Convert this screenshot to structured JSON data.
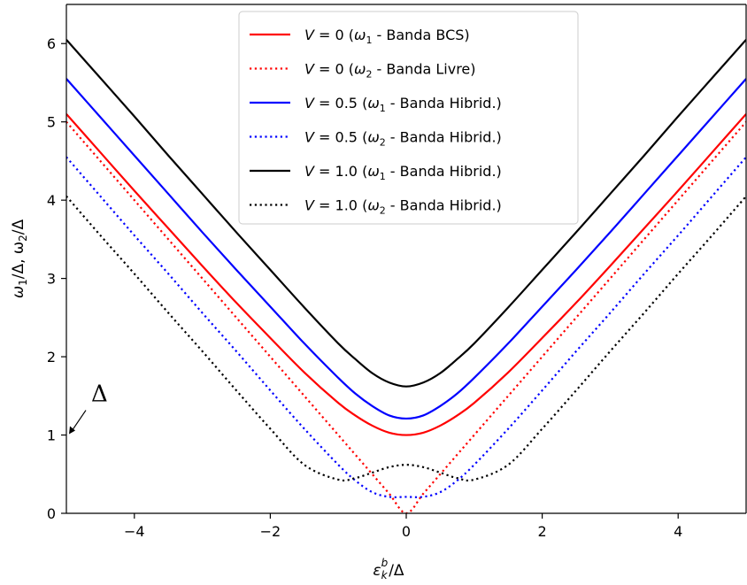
{
  "chart_data": {
    "type": "line",
    "xlabel_html": [
      "ε",
      "k",
      "b",
      "/Δ"
    ],
    "ylabel": "ω1/Δ,ω2/Δ",
    "ylabel_parts": [
      "ω",
      "1",
      "/Δ, ω",
      "2",
      "/Δ"
    ],
    "xlim": [
      -5,
      5
    ],
    "ylim": [
      0,
      6.5
    ],
    "xticks": [
      -4,
      -2,
      0,
      2,
      4
    ],
    "xtick_labels": [
      "−4",
      "−2",
      "0",
      "2",
      "4"
    ],
    "yticks": [
      0,
      1,
      2,
      3,
      4,
      5,
      6
    ],
    "ytick_labels": [
      "0",
      "1",
      "2",
      "3",
      "4",
      "5",
      "6"
    ],
    "legend_position": "top-center",
    "x": [
      -5,
      -4.5,
      -4,
      -3.5,
      -3,
      -2.5,
      -2,
      -1.5,
      -1,
      -0.75,
      -0.5,
      -0.25,
      0,
      0.25,
      0.5,
      0.75,
      1,
      1.5,
      2,
      2.5,
      3,
      3.5,
      4,
      4.5,
      5
    ],
    "series": [
      {
        "name": "V = 0 (ω1 - Banda BCS)",
        "label_parts": [
          "V",
          " = 0 (",
          "ω",
          "1",
          " - Banda BCS)"
        ],
        "color": "#ff0000",
        "style": "solid",
        "values": [
          5.1,
          4.61,
          4.12,
          3.64,
          3.16,
          2.69,
          2.24,
          1.8,
          1.41,
          1.25,
          1.12,
          1.03,
          1.0,
          1.03,
          1.12,
          1.25,
          1.41,
          1.8,
          2.24,
          2.69,
          3.16,
          3.64,
          4.12,
          4.61,
          5.1
        ]
      },
      {
        "name": "V = 0 (ω2 - Banda Livre)",
        "label_parts": [
          "V",
          " = 0 (",
          "ω",
          "2",
          " - Banda Livre)"
        ],
        "color": "#ff0000",
        "style": "dotted",
        "values": [
          5.0,
          4.5,
          4.0,
          3.5,
          3.0,
          2.5,
          2.0,
          1.5,
          1.0,
          0.75,
          0.5,
          0.25,
          0.0,
          0.25,
          0.5,
          0.75,
          1.0,
          1.5,
          2.0,
          2.5,
          3.0,
          3.5,
          4.0,
          4.5,
          5.0
        ]
      },
      {
        "name": "V = 0.5 (ω1 - Banda Hibrid.)",
        "label_parts": [
          "V",
          " = 0.5 (",
          "ω",
          "1",
          " - Banda Hibrid.)"
        ],
        "color": "#0000ff",
        "style": "solid",
        "values": [
          5.55,
          5.06,
          4.57,
          4.08,
          3.59,
          3.11,
          2.64,
          2.17,
          1.73,
          1.53,
          1.37,
          1.25,
          1.21,
          1.25,
          1.37,
          1.53,
          1.73,
          2.17,
          2.64,
          3.11,
          3.59,
          4.08,
          4.57,
          5.06,
          5.55
        ]
      },
      {
        "name": "V = 0.5 (ω2 - Banda Hibrid.)",
        "label_parts": [
          "V",
          " = 0.5 (",
          "ω",
          "2",
          " - Banda Hibrid.)"
        ],
        "color": "#0000ff",
        "style": "dotted",
        "values": [
          4.55,
          4.05,
          3.55,
          3.06,
          2.56,
          2.07,
          1.57,
          1.08,
          0.62,
          0.42,
          0.27,
          0.21,
          0.21,
          0.21,
          0.27,
          0.42,
          0.62,
          1.08,
          1.57,
          2.07,
          2.56,
          3.06,
          3.55,
          4.05,
          4.55
        ]
      },
      {
        "name": "V = 1.0 (ω1 - Banda Hibrid.)",
        "label_parts": [
          "V",
          " = 1.0 (",
          "ω",
          "1",
          " - Banda Hibrid.)"
        ],
        "color": "#000000",
        "style": "solid",
        "values": [
          6.05,
          5.56,
          5.07,
          4.57,
          4.08,
          3.59,
          3.11,
          2.63,
          2.17,
          1.97,
          1.79,
          1.67,
          1.62,
          1.67,
          1.79,
          1.97,
          2.17,
          2.63,
          3.11,
          3.59,
          4.08,
          4.57,
          5.07,
          5.56,
          6.05
        ]
      },
      {
        "name": "V = 1.0 (ω2 - Banda Hibrid.)",
        "label_parts": [
          "V",
          " = 1.0 (",
          "ω",
          "2",
          " - Banda Hibrid.)"
        ],
        "color": "#000000",
        "style": "dotted",
        "values": [
          4.05,
          3.55,
          3.06,
          2.56,
          2.07,
          1.57,
          1.08,
          0.62,
          0.43,
          0.45,
          0.52,
          0.59,
          0.62,
          0.59,
          0.52,
          0.45,
          0.43,
          0.62,
          1.08,
          1.57,
          2.07,
          2.56,
          3.06,
          3.55,
          4.05
        ]
      }
    ],
    "annotations": [
      {
        "text": "Δ",
        "points_to": {
          "x": -5,
          "y": 1
        }
      }
    ]
  }
}
